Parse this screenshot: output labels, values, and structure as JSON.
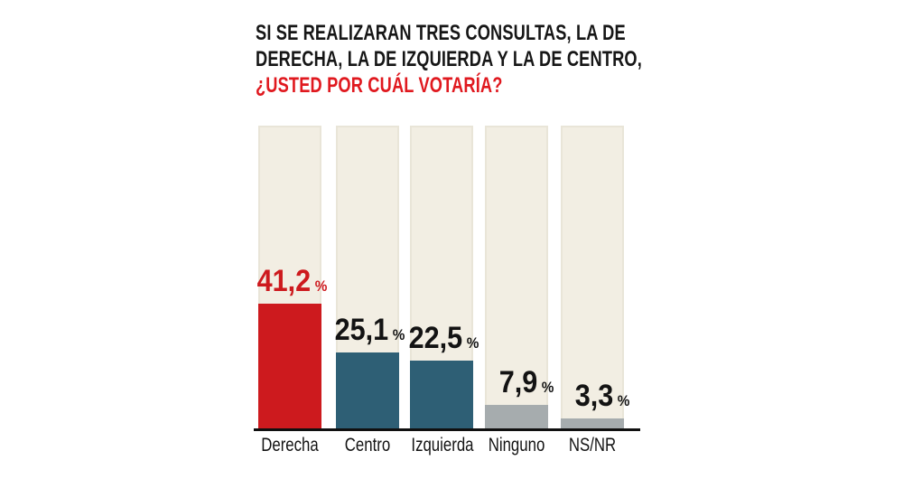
{
  "title": {
    "line1": "SI SE REALIZARAN TRES CONSULTAS, LA DE",
    "line2": "DERECHA, LA DE IZQUIERDA Y LA DE CENTRO,",
    "line3": "¿USTED POR CUÁL VOTARÍA?",
    "text_color": "#161616",
    "highlight_color": "#e0191f"
  },
  "chart_data": {
    "type": "bar",
    "title": "SI SE REALIZARAN TRES CONSULTAS, LA DE DERECHA, LA DE IZQUIERDA Y LA DE CENTRO, ¿USTED POR CUÁL VOTARÍA?",
    "categories": [
      "Derecha",
      "Centro",
      "Izquierda",
      "Ninguno",
      "NS/NR"
    ],
    "values": [
      41.2,
      25.1,
      22.5,
      7.9,
      3.3
    ],
    "value_labels": [
      "41,2",
      "25,1",
      "22,5",
      "7,9",
      "3,3"
    ],
    "unit": "%",
    "xlabel": "",
    "ylabel": "",
    "ylim": [
      0,
      100
    ],
    "grid": false,
    "legend": false,
    "bar_colors": [
      "#cd1a1e",
      "#2e5f75",
      "#2e5f75",
      "#a6acae",
      "#a6acae"
    ],
    "value_label_colors": [
      "#cd1a1e",
      "#131313",
      "#131313",
      "#131313",
      "#131313"
    ],
    "track_color": "#f2eee3",
    "track_edge_color": "#e9e5d8",
    "baseline_color": "#101010",
    "category_label_color": "#131313"
  }
}
